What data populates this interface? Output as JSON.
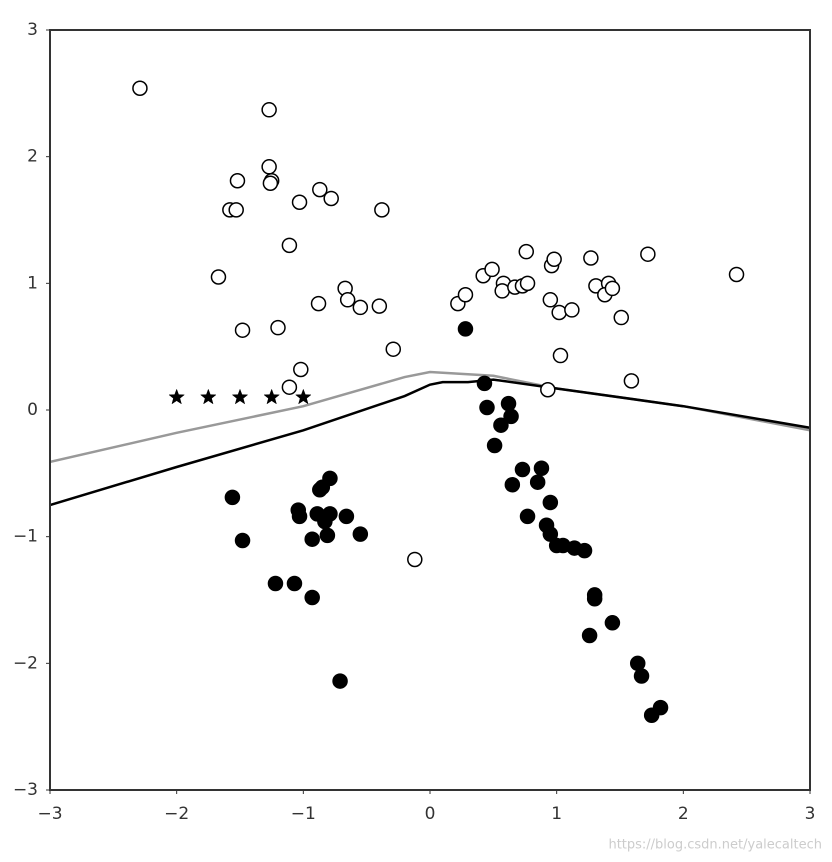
{
  "chart_data": {
    "type": "scatter",
    "xlim": [
      -3,
      3
    ],
    "ylim": [
      -3,
      3
    ],
    "xticks": [
      {
        "value": -3,
        "label": "−3"
      },
      {
        "value": -2,
        "label": "−2"
      },
      {
        "value": -1,
        "label": "−1"
      },
      0,
      1,
      2,
      3
    ],
    "yticks": [
      {
        "value": -3,
        "label": "−3"
      },
      {
        "value": -2,
        "label": "−2"
      },
      {
        "value": -1,
        "label": "−1"
      },
      0,
      1,
      2,
      3
    ],
    "grid": false,
    "series": [
      {
        "kind": "line",
        "color": "#999999",
        "x": [
          -3,
          -2,
          -1,
          -0.2,
          0,
          0.5,
          1,
          2,
          3
        ],
        "y": [
          -0.41,
          -0.18,
          0.03,
          0.26,
          0.3,
          0.27,
          0.17,
          0.03,
          -0.16
        ]
      },
      {
        "kind": "line",
        "color": "#000000",
        "x": [
          -3,
          -2,
          -1,
          -0.2,
          0,
          0.1,
          0.3,
          0.5,
          1,
          2,
          3
        ],
        "y": [
          -0.75,
          -0.45,
          -0.16,
          0.11,
          0.2,
          0.22,
          0.22,
          0.24,
          0.17,
          0.03,
          -0.14
        ]
      },
      {
        "kind": "points",
        "marker": "circle",
        "fill": "#ffffff",
        "color": "#000000",
        "x": [
          -2.29,
          -1.27,
          -1.27,
          -1.25,
          -1.26,
          -1.52,
          -1.58,
          -1.53,
          -0.87,
          -0.78,
          -1.03,
          -0.38,
          -1.11,
          -1.67,
          -0.67,
          -0.65,
          -0.88,
          -0.55,
          -0.4,
          -1.48,
          -1.2,
          -0.29,
          -1.02,
          -1.11,
          0.22,
          0.28,
          0.42,
          0.49,
          0.58,
          0.57,
          0.67,
          0.73,
          0.77,
          0.76,
          0.96,
          0.98,
          0.95,
          1.02,
          1.12,
          1.03,
          1.27,
          1.31,
          1.41,
          1.38,
          1.44,
          1.51,
          1.72,
          2.42,
          1.59,
          0.93,
          -0.12
        ],
        "y": [
          2.54,
          2.37,
          1.92,
          1.81,
          1.79,
          1.81,
          1.58,
          1.58,
          1.74,
          1.67,
          1.64,
          1.58,
          1.3,
          1.05,
          0.96,
          0.87,
          0.84,
          0.81,
          0.82,
          0.63,
          0.65,
          0.48,
          0.32,
          0.18,
          0.84,
          0.91,
          1.06,
          1.11,
          1.0,
          0.94,
          0.97,
          0.98,
          1.0,
          1.25,
          1.14,
          1.19,
          0.87,
          0.77,
          0.79,
          0.43,
          1.2,
          0.98,
          1.0,
          0.91,
          0.96,
          0.73,
          1.23,
          1.07,
          0.23,
          0.16,
          -1.18
        ]
      },
      {
        "kind": "points",
        "marker": "circle",
        "fill": "#000000",
        "color": "#000000",
        "x": [
          0.28,
          0.43,
          0.45,
          0.62,
          0.64,
          0.56,
          0.51,
          0.73,
          0.88,
          0.85,
          0.65,
          0.95,
          0.77,
          0.92,
          0.95,
          1.0,
          1.05,
          1.14,
          1.22,
          1.3,
          1.3,
          1.44,
          1.26,
          1.64,
          1.67,
          1.82,
          1.75,
          -1.56,
          -1.48,
          -0.79,
          -0.85,
          -0.87,
          -1.04,
          -1.03,
          -0.89,
          -0.79,
          -0.83,
          -0.66,
          -0.93,
          -0.81,
          -0.55,
          -1.22,
          -1.07,
          -0.93,
          -0.71
        ],
        "y": [
          0.64,
          0.21,
          0.02,
          0.05,
          -0.05,
          -0.12,
          -0.28,
          -0.47,
          -0.46,
          -0.57,
          -0.59,
          -0.73,
          -0.84,
          -0.91,
          -0.98,
          -1.07,
          -1.07,
          -1.09,
          -1.11,
          -1.46,
          -1.49,
          -1.68,
          -1.78,
          -2.0,
          -2.1,
          -2.35,
          -2.41,
          -0.69,
          -1.03,
          -0.54,
          -0.61,
          -0.63,
          -0.79,
          -0.84,
          -0.82,
          -0.82,
          -0.88,
          -0.84,
          -1.02,
          -0.99,
          -0.98,
          -1.37,
          -1.37,
          -1.48,
          -2.14
        ]
      },
      {
        "kind": "points",
        "marker": "star",
        "fill": "#000000",
        "color": "#000000",
        "x": [
          -2,
          -1.75,
          -1.5,
          -1.25,
          -1
        ],
        "y": [
          0.1,
          0.1,
          0.1,
          0.1,
          0.1
        ]
      }
    ]
  },
  "watermark": "https://blog.csdn.net/yalecaltech"
}
